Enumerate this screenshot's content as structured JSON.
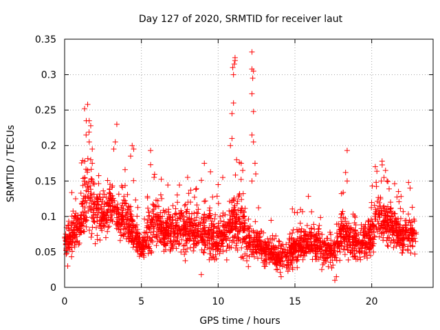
{
  "chart_data": {
    "type": "scatter",
    "title": "Day 127 of 2020, SRMTID for receiver laut",
    "xlabel": "GPS time / hours",
    "ylabel": "SRMTID / TECUs",
    "xlim": [
      0,
      24
    ],
    "ylim": [
      0,
      0.35
    ],
    "xticks": [
      0,
      5,
      10,
      15,
      20
    ],
    "xtick_labels": [
      "0",
      "5",
      "10",
      "15",
      "20"
    ],
    "yticks": [
      0,
      0.05,
      0.1,
      0.15,
      0.2,
      0.25,
      0.3,
      0.35
    ],
    "ytick_labels": [
      "0",
      "0.05",
      "0.1",
      "0.15",
      "0.2",
      "0.25",
      "0.3",
      "0.35"
    ],
    "grid": true,
    "marker": "+",
    "point_color": "#ff0000",
    "data_span_hours": [
      0,
      22.9
    ],
    "envelope": {
      "hours": [
        0.0,
        0.5,
        1.0,
        1.5,
        2.0,
        2.5,
        3.0,
        3.5,
        4.0,
        4.5,
        5.0,
        5.5,
        6.0,
        6.5,
        7.0,
        7.5,
        8.0,
        8.5,
        9.0,
        9.5,
        10.0,
        10.5,
        11.0,
        11.5,
        12.0,
        12.5,
        13.0,
        13.5,
        14.0,
        14.5,
        15.0,
        15.5,
        16.0,
        16.5,
        17.0,
        17.5,
        18.0,
        18.5,
        19.0,
        19.5,
        20.0,
        20.5,
        21.0,
        21.5,
        22.0,
        22.5,
        22.9
      ],
      "center": [
        0.06,
        0.075,
        0.085,
        0.13,
        0.11,
        0.1,
        0.115,
        0.1,
        0.095,
        0.08,
        0.055,
        0.075,
        0.09,
        0.08,
        0.08,
        0.085,
        0.08,
        0.085,
        0.08,
        0.075,
        0.07,
        0.08,
        0.095,
        0.085,
        0.065,
        0.06,
        0.05,
        0.05,
        0.04,
        0.045,
        0.055,
        0.065,
        0.065,
        0.06,
        0.05,
        0.045,
        0.075,
        0.07,
        0.06,
        0.065,
        0.075,
        0.1,
        0.095,
        0.085,
        0.07,
        0.075,
        0.07
      ],
      "spread": [
        0.015,
        0.025,
        0.03,
        0.06,
        0.04,
        0.035,
        0.035,
        0.03,
        0.035,
        0.03,
        0.015,
        0.03,
        0.03,
        0.03,
        0.03,
        0.03,
        0.035,
        0.03,
        0.03,
        0.035,
        0.03,
        0.035,
        0.04,
        0.04,
        0.03,
        0.02,
        0.02,
        0.02,
        0.015,
        0.025,
        0.025,
        0.025,
        0.025,
        0.025,
        0.02,
        0.02,
        0.03,
        0.03,
        0.025,
        0.025,
        0.03,
        0.035,
        0.03,
        0.03,
        0.025,
        0.025,
        0.02
      ]
    },
    "notable_points": [
      {
        "x": 1.5,
        "y": 0.258
      },
      {
        "x": 1.3,
        "y": 0.252
      },
      {
        "x": 1.6,
        "y": 0.235
      },
      {
        "x": 1.7,
        "y": 0.228
      },
      {
        "x": 1.4,
        "y": 0.215
      },
      {
        "x": 1.6,
        "y": 0.205
      },
      {
        "x": 1.8,
        "y": 0.195
      },
      {
        "x": 1.7,
        "y": 0.18
      },
      {
        "x": 1.8,
        "y": 0.175
      },
      {
        "x": 3.4,
        "y": 0.23
      },
      {
        "x": 3.3,
        "y": 0.205
      },
      {
        "x": 3.2,
        "y": 0.195
      },
      {
        "x": 4.4,
        "y": 0.2
      },
      {
        "x": 4.5,
        "y": 0.195
      },
      {
        "x": 4.3,
        "y": 0.185
      },
      {
        "x": 5.6,
        "y": 0.193
      },
      {
        "x": 5.6,
        "y": 0.173
      },
      {
        "x": 9.1,
        "y": 0.175
      },
      {
        "x": 9.5,
        "y": 0.163
      },
      {
        "x": 10.0,
        "y": 0.145
      },
      {
        "x": 10.3,
        "y": 0.155
      },
      {
        "x": 10.9,
        "y": 0.21
      },
      {
        "x": 10.8,
        "y": 0.2
      },
      {
        "x": 10.9,
        "y": 0.245
      },
      {
        "x": 11.0,
        "y": 0.26
      },
      {
        "x": 11.0,
        "y": 0.3
      },
      {
        "x": 11.05,
        "y": 0.315
      },
      {
        "x": 11.1,
        "y": 0.32
      },
      {
        "x": 11.1,
        "y": 0.324
      },
      {
        "x": 10.95,
        "y": 0.31
      },
      {
        "x": 11.2,
        "y": 0.18
      },
      {
        "x": 11.5,
        "y": 0.175
      },
      {
        "x": 11.6,
        "y": 0.165
      },
      {
        "x": 12.2,
        "y": 0.332
      },
      {
        "x": 12.2,
        "y": 0.308
      },
      {
        "x": 12.3,
        "y": 0.305
      },
      {
        "x": 12.25,
        "y": 0.295
      },
      {
        "x": 12.2,
        "y": 0.273
      },
      {
        "x": 12.3,
        "y": 0.248
      },
      {
        "x": 12.2,
        "y": 0.215
      },
      {
        "x": 12.3,
        "y": 0.205
      },
      {
        "x": 12.4,
        "y": 0.175
      },
      {
        "x": 12.45,
        "y": 0.16
      },
      {
        "x": 12.2,
        "y": 0.15
      },
      {
        "x": 18.4,
        "y": 0.193
      },
      {
        "x": 18.3,
        "y": 0.162
      },
      {
        "x": 18.4,
        "y": 0.15
      },
      {
        "x": 20.9,
        "y": 0.165
      },
      {
        "x": 20.8,
        "y": 0.155
      },
      {
        "x": 21.0,
        "y": 0.15
      },
      {
        "x": 22.4,
        "y": 0.148
      },
      {
        "x": 22.5,
        "y": 0.14
      },
      {
        "x": 17.6,
        "y": 0.01
      },
      {
        "x": 17.7,
        "y": 0.015
      },
      {
        "x": 14.1,
        "y": 0.015
      },
      {
        "x": 8.9,
        "y": 0.018
      },
      {
        "x": 0.2,
        "y": 0.03
      }
    ]
  }
}
